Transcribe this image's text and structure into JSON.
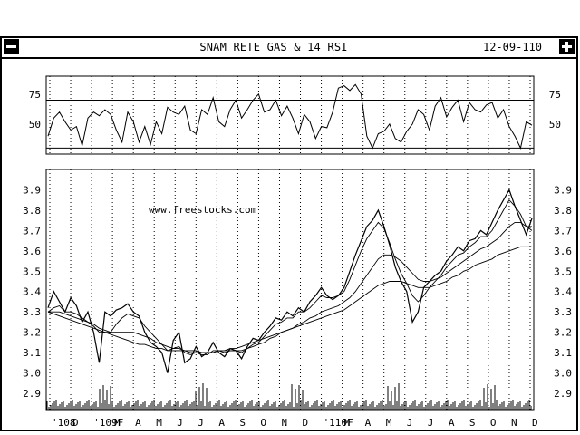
{
  "window": {
    "title": "SNAM RETE GAS & 14 RSI",
    "date": "12-09-110",
    "menu_icon": "window-menu-icon",
    "maximize_icon": "window-maximize-icon"
  },
  "chart_data": [
    {
      "type": "line",
      "panel": "rsi",
      "title": "",
      "ylabel": "",
      "ylim": [
        25,
        90
      ],
      "yticks": [
        75,
        50
      ],
      "reference_lines": [
        70,
        30
      ],
      "series": [
        {
          "values": [
            40,
            55,
            60,
            52,
            45,
            48,
            32,
            55,
            60,
            57,
            62,
            58,
            45,
            35,
            60,
            52,
            35,
            48,
            33,
            52,
            42,
            64,
            60,
            58,
            65,
            45,
            42,
            62,
            58,
            72,
            52,
            48,
            62,
            70,
            55,
            62,
            70,
            75,
            60,
            62,
            70,
            57,
            65,
            55,
            42,
            58,
            52,
            38,
            48,
            47,
            60,
            80,
            82,
            78,
            83,
            75,
            40,
            30,
            42,
            44,
            50,
            38,
            35,
            44,
            50,
            62,
            58,
            45,
            65,
            72,
            56,
            64,
            70,
            52,
            68,
            62,
            60,
            66,
            68,
            55,
            62,
            48,
            40,
            30,
            52,
            49
          ]
        }
      ]
    },
    {
      "type": "line",
      "panel": "price",
      "title": "",
      "ylabel": "",
      "ylim": [
        2.82,
        4.0
      ],
      "yticks": [
        3.9,
        3.8,
        3.7,
        3.6,
        3.5,
        3.4,
        3.3,
        3.2,
        3.1,
        3.0,
        2.9
      ],
      "x_tick_labels": [
        "'108",
        "D",
        "'109F",
        "M",
        "A",
        "M",
        "J",
        "J",
        "A",
        "S",
        "O",
        "N",
        "D",
        "'110F",
        "M",
        "A",
        "M",
        "J",
        "J",
        "A",
        "S",
        "O",
        "N",
        "D"
      ],
      "watermark": "www.freestocks.com",
      "series": [
        {
          "values": [
            3.32,
            3.4,
            3.35,
            3.3,
            3.37,
            3.33,
            3.25,
            3.3,
            3.2,
            3.05,
            3.3,
            3.28,
            3.31,
            3.32,
            3.34,
            3.3,
            3.28,
            3.2,
            3.15,
            3.13,
            3.1,
            3.0,
            3.16,
            3.2,
            3.05,
            3.07,
            3.13,
            3.08,
            3.1,
            3.15,
            3.1,
            3.08,
            3.12,
            3.11,
            3.07,
            3.13,
            3.17,
            3.16,
            3.2,
            3.23,
            3.27,
            3.26,
            3.3,
            3.28,
            3.32,
            3.3,
            3.35,
            3.38,
            3.42,
            3.38,
            3.36,
            3.38,
            3.42,
            3.5,
            3.58,
            3.65,
            3.72,
            3.75,
            3.8,
            3.72,
            3.63,
            3.52,
            3.45,
            3.4,
            3.25,
            3.3,
            3.42,
            3.45,
            3.48,
            3.5,
            3.55,
            3.58,
            3.62,
            3.6,
            3.65,
            3.66,
            3.7,
            3.68,
            3.74,
            3.8,
            3.85,
            3.9,
            3.82,
            3.75,
            3.68,
            3.76
          ]
        },
        {
          "values": [
            3.3,
            3.32,
            3.33,
            3.3,
            3.3,
            3.29,
            3.27,
            3.25,
            3.23,
            3.2,
            3.2,
            3.2,
            3.24,
            3.27,
            3.29,
            3.28,
            3.27,
            3.23,
            3.2,
            3.17,
            3.14,
            3.11,
            3.12,
            3.13,
            3.1,
            3.09,
            3.1,
            3.09,
            3.09,
            3.11,
            3.11,
            3.1,
            3.11,
            3.11,
            3.1,
            3.12,
            3.14,
            3.15,
            3.18,
            3.21,
            3.24,
            3.25,
            3.27,
            3.27,
            3.3,
            3.3,
            3.32,
            3.35,
            3.38,
            3.37,
            3.37,
            3.38,
            3.4,
            3.46,
            3.53,
            3.6,
            3.66,
            3.7,
            3.74,
            3.71,
            3.64,
            3.56,
            3.49,
            3.44,
            3.38,
            3.35,
            3.38,
            3.42,
            3.45,
            3.48,
            3.52,
            3.55,
            3.58,
            3.59,
            3.62,
            3.64,
            3.67,
            3.67,
            3.7,
            3.75,
            3.8,
            3.85,
            3.82,
            3.78,
            3.72,
            3.72
          ]
        },
        {
          "values": [
            3.3,
            3.3,
            3.3,
            3.29,
            3.28,
            3.27,
            3.26,
            3.25,
            3.24,
            3.22,
            3.21,
            3.2,
            3.2,
            3.2,
            3.2,
            3.2,
            3.19,
            3.18,
            3.17,
            3.15,
            3.14,
            3.13,
            3.12,
            3.12,
            3.11,
            3.11,
            3.11,
            3.1,
            3.1,
            3.1,
            3.11,
            3.11,
            3.11,
            3.11,
            3.11,
            3.12,
            3.13,
            3.14,
            3.15,
            3.17,
            3.18,
            3.2,
            3.21,
            3.22,
            3.24,
            3.25,
            3.27,
            3.28,
            3.3,
            3.31,
            3.32,
            3.33,
            3.35,
            3.37,
            3.4,
            3.44,
            3.48,
            3.52,
            3.56,
            3.58,
            3.58,
            3.57,
            3.55,
            3.52,
            3.49,
            3.46,
            3.45,
            3.45,
            3.46,
            3.47,
            3.49,
            3.51,
            3.53,
            3.55,
            3.57,
            3.59,
            3.61,
            3.62,
            3.64,
            3.66,
            3.69,
            3.72,
            3.74,
            3.74,
            3.72,
            3.7
          ]
        },
        {
          "values": [
            3.3,
            3.29,
            3.28,
            3.27,
            3.26,
            3.25,
            3.24,
            3.23,
            3.22,
            3.21,
            3.2,
            3.19,
            3.18,
            3.17,
            3.16,
            3.15,
            3.14,
            3.14,
            3.13,
            3.12,
            3.12,
            3.11,
            3.11,
            3.11,
            3.11,
            3.1,
            3.1,
            3.1,
            3.1,
            3.1,
            3.11,
            3.11,
            3.12,
            3.12,
            3.13,
            3.14,
            3.15,
            3.16,
            3.17,
            3.18,
            3.19,
            3.2,
            3.21,
            3.22,
            3.23,
            3.24,
            3.25,
            3.26,
            3.27,
            3.28,
            3.29,
            3.3,
            3.31,
            3.33,
            3.35,
            3.37,
            3.39,
            3.41,
            3.43,
            3.44,
            3.45,
            3.45,
            3.45,
            3.44,
            3.43,
            3.42,
            3.42,
            3.42,
            3.43,
            3.44,
            3.45,
            3.47,
            3.48,
            3.5,
            3.51,
            3.53,
            3.54,
            3.55,
            3.56,
            3.58,
            3.59,
            3.6,
            3.61,
            3.62,
            3.62,
            3.62
          ]
        }
      ]
    }
  ]
}
